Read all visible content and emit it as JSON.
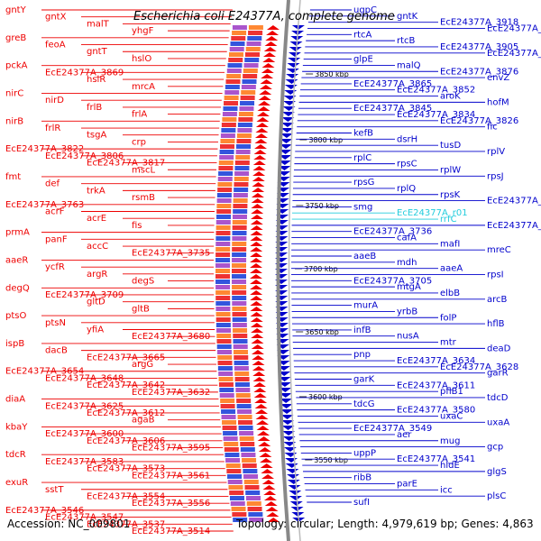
{
  "title": "Escherichia coli E24377A, complete genome",
  "accession": "Accession: NC_009801",
  "summary": "Topology: circular; Length: 4,979,619 bp; Genes: 4,863",
  "colors": {
    "left_strand": "#ee0000",
    "right_strand": "#0000cc",
    "rna": "#22ccdd",
    "backbone": "#888888",
    "tick_marker": "#228822"
  },
  "ticks": [
    "3850 kbp",
    "3800 kbp",
    "3750 kbp",
    "3700 kbp",
    "3650 kbp",
    "3600 kbp",
    "3550 kbp"
  ],
  "left_labels": [
    "gntY",
    "gntX",
    "malT",
    "yhgF",
    "greB",
    "feoA",
    "gntT",
    "hslO",
    "pckA",
    "EcE24377A_3869",
    "hslR",
    "mrcA",
    "nirC",
    "nirD",
    "frlB",
    "frlA",
    "nirB",
    "frlR",
    "tsgA",
    "crp",
    "EcE24377A_3822",
    "EcE24377A_3806",
    "EcE24377A_3817",
    "mscL",
    "fmt",
    "def",
    "trkA",
    "rsmB",
    "EcE24377A_3763",
    "acrF",
    "acrE",
    "fis",
    "prmA",
    "panF",
    "accC",
    "EcE24377A_3735",
    "aaeR",
    "ycfR",
    "argR",
    "degS",
    "degQ",
    "EcE24377A_3709",
    "gltD",
    "gltB",
    "ptsO",
    "ptsN",
    "yfiA",
    "EcE24377A_3680",
    "ispB",
    "dacB",
    "EcE24377A_3665",
    "argG",
    "EcE24377A_3654",
    "EcE24377A_3648",
    "EcE24377A_3642",
    "EcE24377A_3632",
    "diaA",
    "EcE24377A_3625",
    "EcE24377A_3612",
    "agaB",
    "kbaY",
    "EcE24377A_3600",
    "EcE24377A_3606",
    "EcE24377A_3595",
    "tdcR",
    "EcE24377A_3583",
    "EcE24377A_3573",
    "EcE24377A_3561",
    "exuR",
    "sstT",
    "EcE24377A_3554",
    "EcE24377A_3556",
    "EcE24377A_3546",
    "EcE24377A_3547",
    "EcE24377A_3537",
    "EcE24377A_3514"
  ],
  "right_labels": [
    "ugpC",
    "gntK",
    "EcE24377A_3918",
    "EcE24377A_3906",
    "rtcA",
    "rtcB",
    "EcE24377A_3905",
    "EcE24377A_3887",
    "glpE",
    "malQ",
    "EcE24377A_3876",
    "envZ",
    "EcE24377A_3865",
    "EcE24377A_3852",
    "aroK",
    "hofM",
    "EcE24377A_3845",
    "EcE24377A_3834",
    "EcE24377A_3826",
    "fic",
    "kefB",
    "dsrH",
    "tusD",
    "rplV",
    "rplC",
    "rpsC",
    "rplW",
    "rpsJ",
    "rpsG",
    "rplQ",
    "rpsK",
    "EcE24377A_3773",
    "smg",
    "EcE24377A_r01",
    "rrfC",
    "EcE24377A_3749",
    "EcE24377A_3736",
    "cafA",
    "mafI",
    "mreC",
    "aaeB",
    "mdh",
    "aaeA",
    "rpsI",
    "EcE24377A_3705",
    "mtgA",
    "elbB",
    "arcB",
    "murA",
    "yrbB",
    "folP",
    "hflB",
    "infB",
    "nusA",
    "mtr",
    "deaD",
    "pnp",
    "EcE24377A_3634",
    "EcE24377A_3628",
    "garR",
    "garK",
    "EcE24377A_3611",
    "pflB1",
    "tdcD",
    "tdcG",
    "EcE24377A_3580",
    "uxaC",
    "uxaA",
    "EcE24377A_3549",
    "aer",
    "mug",
    "gcp",
    "uppP",
    "EcE24377A_3541",
    "hldE",
    "glgS",
    "ribB",
    "parE",
    "icc",
    "plsC",
    "sufI"
  ]
}
